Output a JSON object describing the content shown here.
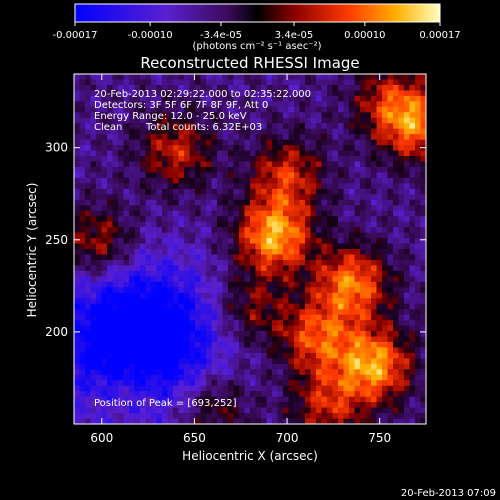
{
  "chart_data": {
    "type": "heatmap",
    "title": "Reconstructed RHESSI Image",
    "xlabel": "Heliocentric X (arcsec)",
    "ylabel": "Heliocentric Y (arcsec)",
    "xlim": [
      585,
      775
    ],
    "ylim": [
      150,
      340
    ],
    "x_ticks": [
      600,
      650,
      700,
      750
    ],
    "y_ticks": [
      200,
      250,
      300
    ],
    "colorbar": {
      "ticks": [
        "-0.00017",
        "-0.00010",
        "-3.4e-05",
        "3.4e-05",
        "0.00010",
        "0.00017"
      ],
      "tick_values": [
        -0.00017,
        -0.0001,
        -3.4e-05,
        3.4e-05,
        0.0001,
        0.00017
      ],
      "range": [
        -0.00017,
        0.00017
      ],
      "units_label": "(photons cm⁻² s⁻¹ asec⁻²)"
    },
    "annotations": [
      "20-Feb-2013 02:29:22.000 to 02:35:22.000",
      "Detectors: 3F 5F 6F 7F 8F 9F, Att 0",
      "Energy Range: 12.0 - 25.0 keV",
      "Clean",
      "Total counts: 6.32E+03"
    ],
    "peak_label": "Position of Peak = [693,252]",
    "peak_x": 693,
    "peak_y": 252,
    "sources": [
      {
        "x": 693,
        "y": 252,
        "amp": 1.0
      },
      {
        "x": 735,
        "y": 226,
        "amp": 0.85
      },
      {
        "x": 747,
        "y": 182,
        "amp": 0.95
      },
      {
        "x": 716,
        "y": 197,
        "amp": 0.7
      },
      {
        "x": 700,
        "y": 285,
        "amp": 0.6
      },
      {
        "x": 770,
        "y": 312,
        "amp": 0.75
      },
      {
        "x": 640,
        "y": 298,
        "amp": 0.55
      },
      {
        "x": 598,
        "y": 248,
        "amp": 0.55
      },
      {
        "x": 680,
        "y": 212,
        "amp": 0.45
      },
      {
        "x": 755,
        "y": 325,
        "amp": 0.5
      },
      {
        "x": 660,
        "y": 160,
        "amp": 0.45
      },
      {
        "x": 722,
        "y": 160,
        "amp": 0.55
      },
      {
        "x": 615,
        "y": 170,
        "amp": 0.3
      }
    ]
  },
  "footer_date": "20-Feb-2013 07:09"
}
